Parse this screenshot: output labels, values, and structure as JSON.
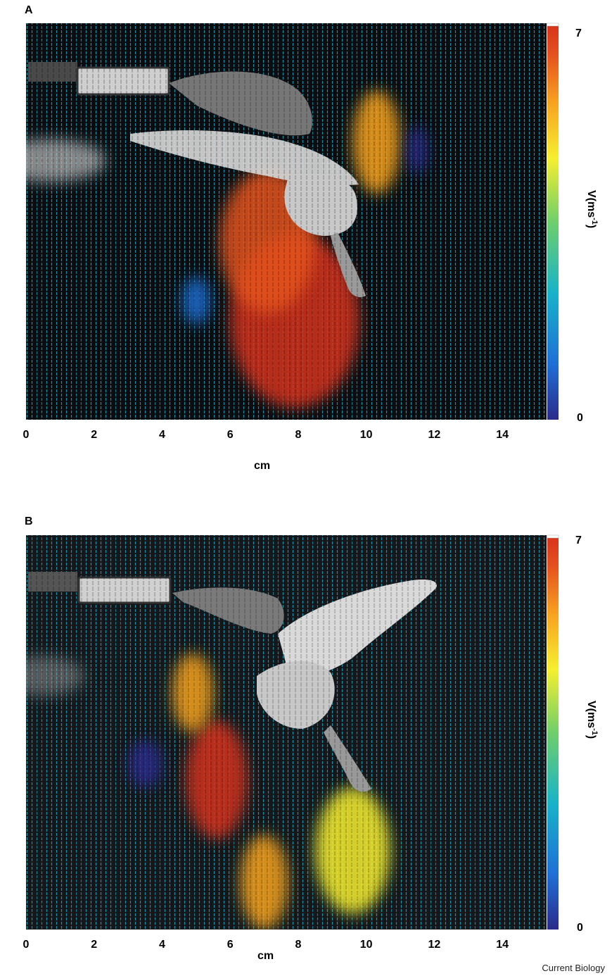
{
  "figure": {
    "credit": "Current Biology"
  },
  "colormap": [
    "#2b2b8a",
    "#1f6fd6",
    "#17b3c9",
    "#6fcf6a",
    "#f7ef2f",
    "#f7a21f",
    "#e5521f",
    "#d6321a"
  ],
  "chart_data": [
    {
      "type": "heatmap",
      "panel": "A",
      "description_source": "PIV velocity field over hovering bird image",
      "xlabel": "cm",
      "xticks": [
        "0",
        "2",
        "4",
        "6",
        "8",
        "10",
        "12",
        "14"
      ],
      "xlim": [
        0,
        15.3
      ],
      "colorbar": {
        "label_main": "V(ms",
        "label_sup": "-1",
        "label_end": ")",
        "min_label": "0",
        "max_label": "7",
        "range": [
          0,
          7
        ]
      },
      "blobs": [
        {
          "x": 7.9,
          "y": 0.75,
          "rx": 1.9,
          "ry": 0.22,
          "v": 6.7
        },
        {
          "x": 7.1,
          "y": 0.55,
          "rx": 1.4,
          "ry": 0.18,
          "v": 6.2
        },
        {
          "x": 10.3,
          "y": 0.3,
          "rx": 0.7,
          "ry": 0.13,
          "v": 4.8
        },
        {
          "x": 5.0,
          "y": 0.7,
          "rx": 0.4,
          "ry": 0.06,
          "v": 0.6
        },
        {
          "x": 11.5,
          "y": 0.32,
          "rx": 0.3,
          "ry": 0.06,
          "v": 0.4
        }
      ]
    },
    {
      "type": "heatmap",
      "panel": "B",
      "description_source": "PIV velocity field over hovering bird image",
      "xlabel": "cm",
      "xticks": [
        "0",
        "2",
        "4",
        "6",
        "8",
        "10",
        "12",
        "14"
      ],
      "xlim": [
        0,
        15.3
      ],
      "colorbar": {
        "label_main": "V(ms",
        "label_sup": "-1",
        "label_end": ")",
        "min_label": "0",
        "max_label": "7",
        "range": [
          0,
          7
        ]
      },
      "blobs": [
        {
          "x": 5.6,
          "y": 0.62,
          "rx": 0.9,
          "ry": 0.15,
          "v": 6.6
        },
        {
          "x": 4.9,
          "y": 0.4,
          "rx": 0.6,
          "ry": 0.1,
          "v": 5.4
        },
        {
          "x": 7.0,
          "y": 0.88,
          "rx": 0.7,
          "ry": 0.12,
          "v": 5.2
        },
        {
          "x": 9.6,
          "y": 0.8,
          "rx": 1.1,
          "ry": 0.16,
          "v": 4.2
        },
        {
          "x": 3.5,
          "y": 0.58,
          "rx": 0.5,
          "ry": 0.06,
          "v": 0.3
        }
      ]
    }
  ]
}
